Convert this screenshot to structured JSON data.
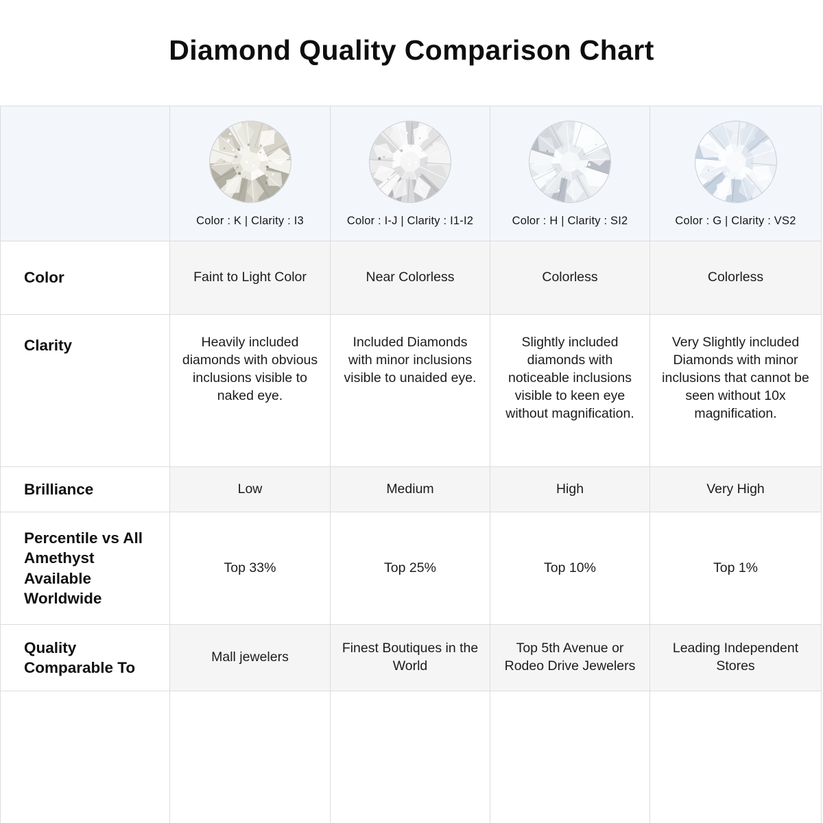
{
  "chart_data": {
    "type": "table",
    "title": "Diamond Quality Comparison Chart",
    "column_headers": [
      "Color : K | Clarity : I3",
      "Color : I-J | Clarity : I1-I2",
      "Color : H | Clarity : SI2",
      "Color : G | Clarity : VS2"
    ],
    "rows": [
      {
        "label": "Color",
        "values": [
          "Faint to Light Color",
          "Near Colorless",
          "Colorless",
          "Colorless"
        ]
      },
      {
        "label": "Clarity",
        "values": [
          "Heavily included diamonds with obvious inclusions visible to naked eye.",
          "Included Diamonds with minor inclusions visible to unaided eye.",
          "Slightly included diamonds with noticeable inclusions visible to keen eye without magnification.",
          "Very Slightly included Diamonds with minor inclusions that cannot be seen without 10x magnification."
        ]
      },
      {
        "label": "Brilliance",
        "values": [
          "Low",
          "Medium",
          "High",
          "Very High"
        ]
      },
      {
        "label": "Percentile vs All Amethyst Available Worldwide",
        "values": [
          "Top 33%",
          "Top 25%",
          "Top 10%",
          "Top 1%"
        ]
      },
      {
        "label": "Quality Comparable To",
        "values": [
          "Mall jewelers",
          "Finest Boutiques in the World",
          "Top 5th Avenue or Rodeo Drive Jewelers",
          "Leading Independent Stores"
        ]
      }
    ]
  },
  "diamond_photos": [
    {
      "icon": "diamond-photo",
      "grade": "K / I3",
      "seed": 11,
      "inclusions": 14,
      "inclusion_color": "#878474",
      "table_color": "#f3f2ec",
      "outer": [
        "#e8e6df",
        "#d6d3c9",
        "#c2bfb4",
        "#f2f1ec",
        "#b2afa3",
        "#dedbd2",
        "#cccabf",
        "#f7f6f2"
      ],
      "inner": [
        "#f4f3ee",
        "#e9e7e0",
        "#dfdcd3",
        "#fbfaf7"
      ]
    },
    {
      "icon": "diamond-photo",
      "grade": "I-J / I1-I2",
      "seed": 23,
      "inclusions": 6,
      "inclusion_color": "#8e8f94",
      "table_color": "#f5f5f5",
      "outer": [
        "#ececec",
        "#dadada",
        "#c5c5c8",
        "#f4f4f5",
        "#b6b6ba",
        "#e2e2e3",
        "#d0d0d2",
        "#f9f9fa"
      ],
      "inner": [
        "#f5f5f6",
        "#eaeaeb",
        "#e0e0e2",
        "#fcfcfd"
      ]
    },
    {
      "icon": "diamond-photo",
      "grade": "H / SI2",
      "seed": 37,
      "inclusions": 2,
      "inclusion_color": "#93969d",
      "table_color": "#f7f8fa",
      "outer": [
        "#eff1f3",
        "#dde0e4",
        "#c9cdd3",
        "#f6f7f9",
        "#b9bec6",
        "#e5e8eb",
        "#d3d7dc",
        "#fafbfc"
      ],
      "inner": [
        "#f6f8fa",
        "#eceff2",
        "#e2e6ea",
        "#fcfdfe"
      ]
    },
    {
      "icon": "diamond-photo",
      "grade": "G / VS2",
      "seed": 51,
      "inclusions": 1,
      "inclusion_color": "#979ca6",
      "table_color": "#f8fafc",
      "outer": [
        "#eef2f7",
        "#dce3ec",
        "#c7d2e0",
        "#f5f8fb",
        "#b7c5d6",
        "#e4eaf1",
        "#d2dae5",
        "#fafcfe"
      ],
      "inner": [
        "#f5f8fb",
        "#ebf0f6",
        "#e1e8f0",
        "#fbfdfe"
      ]
    }
  ],
  "colors": {
    "header_bg": "#f3f6fb",
    "stripe_bg": "#f5f5f6",
    "border": "#dcdcdc",
    "title_text": "#0e0e10",
    "body_text": "#1c1c1e"
  }
}
